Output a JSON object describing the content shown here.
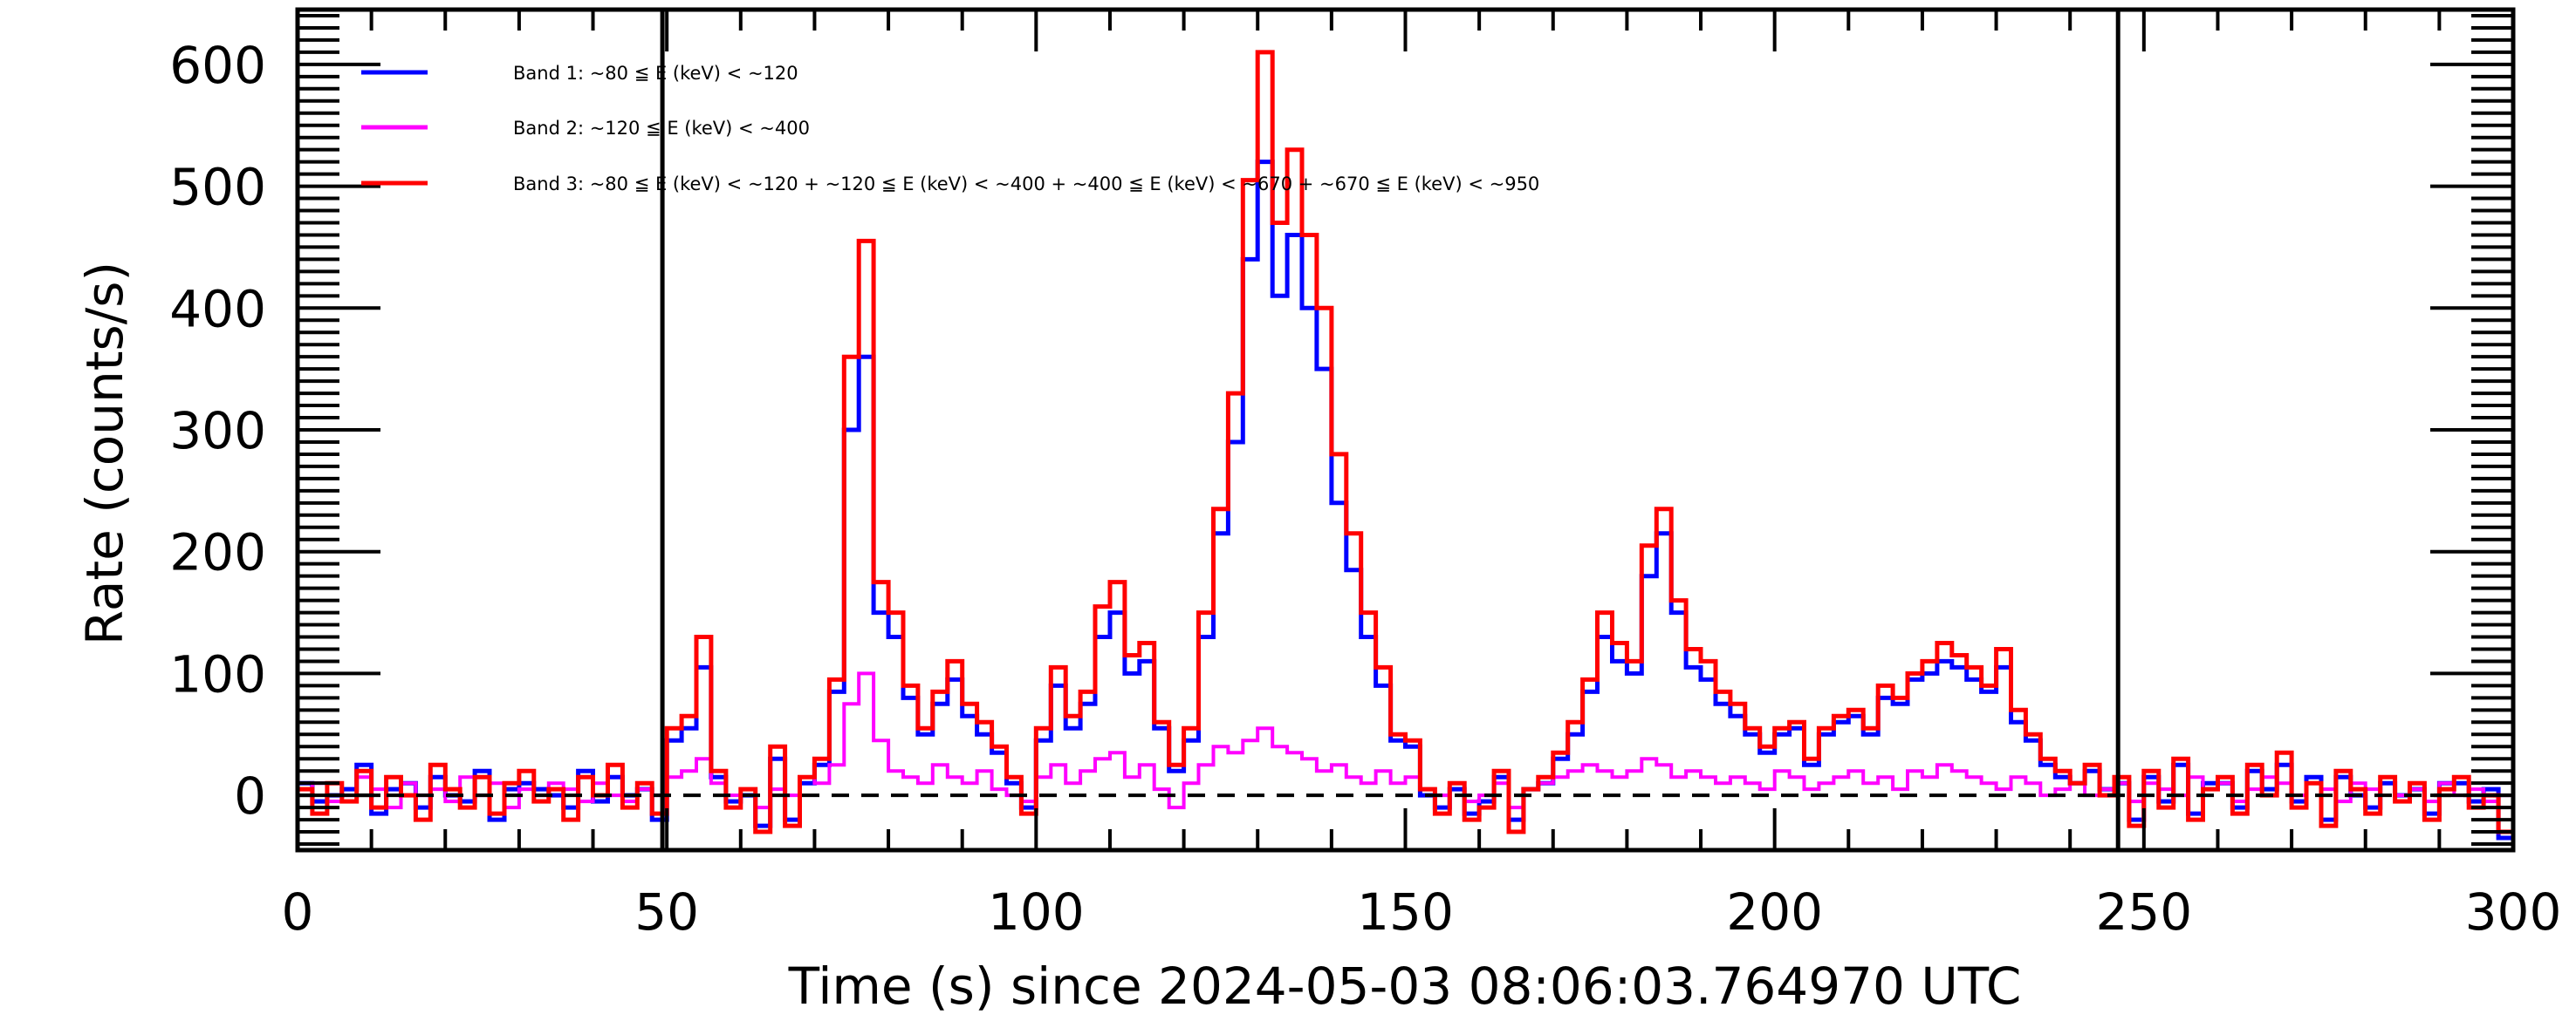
{
  "chart_data": {
    "type": "line",
    "style": "step-histogram",
    "title": "",
    "xlabel": "Time (s) since 2024-05-03 08:06:03.764970 UTC",
    "ylabel": "Rate (counts/s)",
    "xlim": [
      0,
      300
    ],
    "ylim": [
      -45,
      645
    ],
    "xticks": [
      0,
      50,
      100,
      150,
      200,
      250,
      300
    ],
    "xtick_labels": [
      "0",
      "50",
      "100",
      "150",
      "200",
      "250",
      "300"
    ],
    "yticks": [
      0,
      100,
      200,
      300,
      400,
      500,
      600
    ],
    "ytick_labels": [
      "0",
      "100",
      "200",
      "300",
      "400",
      "500",
      "600"
    ],
    "x_minor_step": 10,
    "y_minor_step": 10,
    "grid": false,
    "legend_position": "top-left",
    "reference_lines": {
      "horizontal_dashed_y": 0,
      "vertical_x": [
        49.4,
        246.5
      ]
    },
    "bin_width": 2,
    "x_start": 0,
    "series": [
      {
        "name": "Band 1: ~80 ≦ E (keV) < ~120",
        "color": "#0000ff",
        "values": [
          10,
          -5,
          0,
          5,
          25,
          -15,
          5,
          10,
          -10,
          15,
          0,
          -5,
          20,
          -20,
          5,
          10,
          5,
          0,
          -10,
          20,
          -5,
          15,
          0,
          5,
          -20,
          45,
          55,
          105,
          15,
          -5,
          0,
          -25,
          30,
          -20,
          10,
          25,
          85,
          300,
          360,
          150,
          130,
          80,
          50,
          75,
          95,
          65,
          50,
          35,
          10,
          -10,
          45,
          90,
          55,
          75,
          130,
          150,
          100,
          110,
          55,
          20,
          45,
          130,
          215,
          290,
          440,
          520,
          410,
          460,
          400,
          350,
          240,
          185,
          130,
          90,
          45,
          40,
          0,
          -10,
          5,
          -15,
          -5,
          15,
          -20,
          5,
          10,
          30,
          50,
          85,
          130,
          110,
          100,
          180,
          215,
          150,
          105,
          95,
          75,
          65,
          50,
          35,
          50,
          55,
          25,
          50,
          60,
          65,
          50,
          80,
          75,
          95,
          100,
          110,
          105,
          95,
          85,
          105,
          60,
          45,
          25,
          15,
          10,
          20,
          5,
          10,
          -20,
          15,
          -5,
          25,
          -15,
          10,
          10,
          -10,
          20,
          5,
          25,
          -5,
          15,
          -20,
          15,
          0,
          -10,
          10,
          0,
          5,
          -15,
          10,
          10,
          -5,
          5,
          -35
        ]
      },
      {
        "name": "Band 2: ~120 ≦ E (keV) < ~400",
        "color": "#ff00ff",
        "values": [
          5,
          10,
          -5,
          0,
          15,
          5,
          -10,
          10,
          0,
          5,
          -5,
          15,
          0,
          10,
          -10,
          5,
          0,
          10,
          5,
          -5,
          10,
          0,
          -5,
          5,
          0,
          15,
          20,
          30,
          10,
          0,
          5,
          -10,
          5,
          0,
          15,
          10,
          25,
          75,
          100,
          45,
          20,
          15,
          10,
          25,
          15,
          10,
          20,
          5,
          0,
          -5,
          15,
          25,
          10,
          20,
          30,
          35,
          15,
          25,
          5,
          -10,
          10,
          25,
          40,
          35,
          45,
          55,
          40,
          35,
          30,
          20,
          25,
          15,
          10,
          20,
          10,
          15,
          5,
          0,
          10,
          -5,
          0,
          10,
          -10,
          5,
          10,
          15,
          20,
          25,
          20,
          15,
          20,
          30,
          25,
          15,
          20,
          15,
          10,
          15,
          10,
          5,
          20,
          15,
          5,
          10,
          15,
          20,
          10,
          15,
          5,
          20,
          15,
          25,
          20,
          15,
          10,
          5,
          15,
          10,
          0,
          5,
          10,
          0,
          5,
          10,
          -5,
          10,
          5,
          0,
          15,
          5,
          10,
          -5,
          5,
          15,
          10,
          0,
          10,
          5,
          -5,
          10,
          5,
          15,
          0,
          5,
          -5,
          10,
          0,
          5,
          -5,
          0
        ]
      },
      {
        "name": "Band 3: ~80 ≦ E (keV) < ~120 + ~120 ≦ E (keV) < ~400 + ~400 ≦ E (keV) < ~670 + ~670 ≦ E (keV) < ~950",
        "color": "#ff0000",
        "values": [
          5,
          -15,
          10,
          -5,
          20,
          -10,
          15,
          0,
          -20,
          25,
          5,
          -10,
          15,
          -15,
          10,
          20,
          -5,
          5,
          -20,
          15,
          0,
          25,
          -10,
          10,
          -15,
          55,
          65,
          130,
          20,
          -10,
          5,
          -30,
          40,
          -25,
          15,
          30,
          95,
          360,
          455,
          175,
          150,
          90,
          55,
          85,
          110,
          75,
          60,
          40,
          15,
          -15,
          55,
          105,
          65,
          85,
          155,
          175,
          115,
          125,
          60,
          25,
          55,
          150,
          235,
          330,
          505,
          610,
          470,
          530,
          460,
          400,
          280,
          215,
          150,
          105,
          50,
          45,
          5,
          -15,
          10,
          -20,
          -10,
          20,
          -30,
          5,
          15,
          35,
          60,
          95,
          150,
          125,
          110,
          205,
          235,
          160,
          120,
          110,
          85,
          75,
          55,
          40,
          55,
          60,
          30,
          55,
          65,
          70,
          55,
          90,
          80,
          100,
          110,
          125,
          115,
          105,
          90,
          120,
          70,
          50,
          30,
          20,
          10,
          25,
          0,
          15,
          -25,
          20,
          -10,
          30,
          -20,
          5,
          15,
          -15,
          25,
          0,
          35,
          -10,
          10,
          -25,
          20,
          5,
          -15,
          15,
          -5,
          10,
          -20,
          5,
          15,
          -10,
          0,
          -30
        ]
      }
    ]
  }
}
